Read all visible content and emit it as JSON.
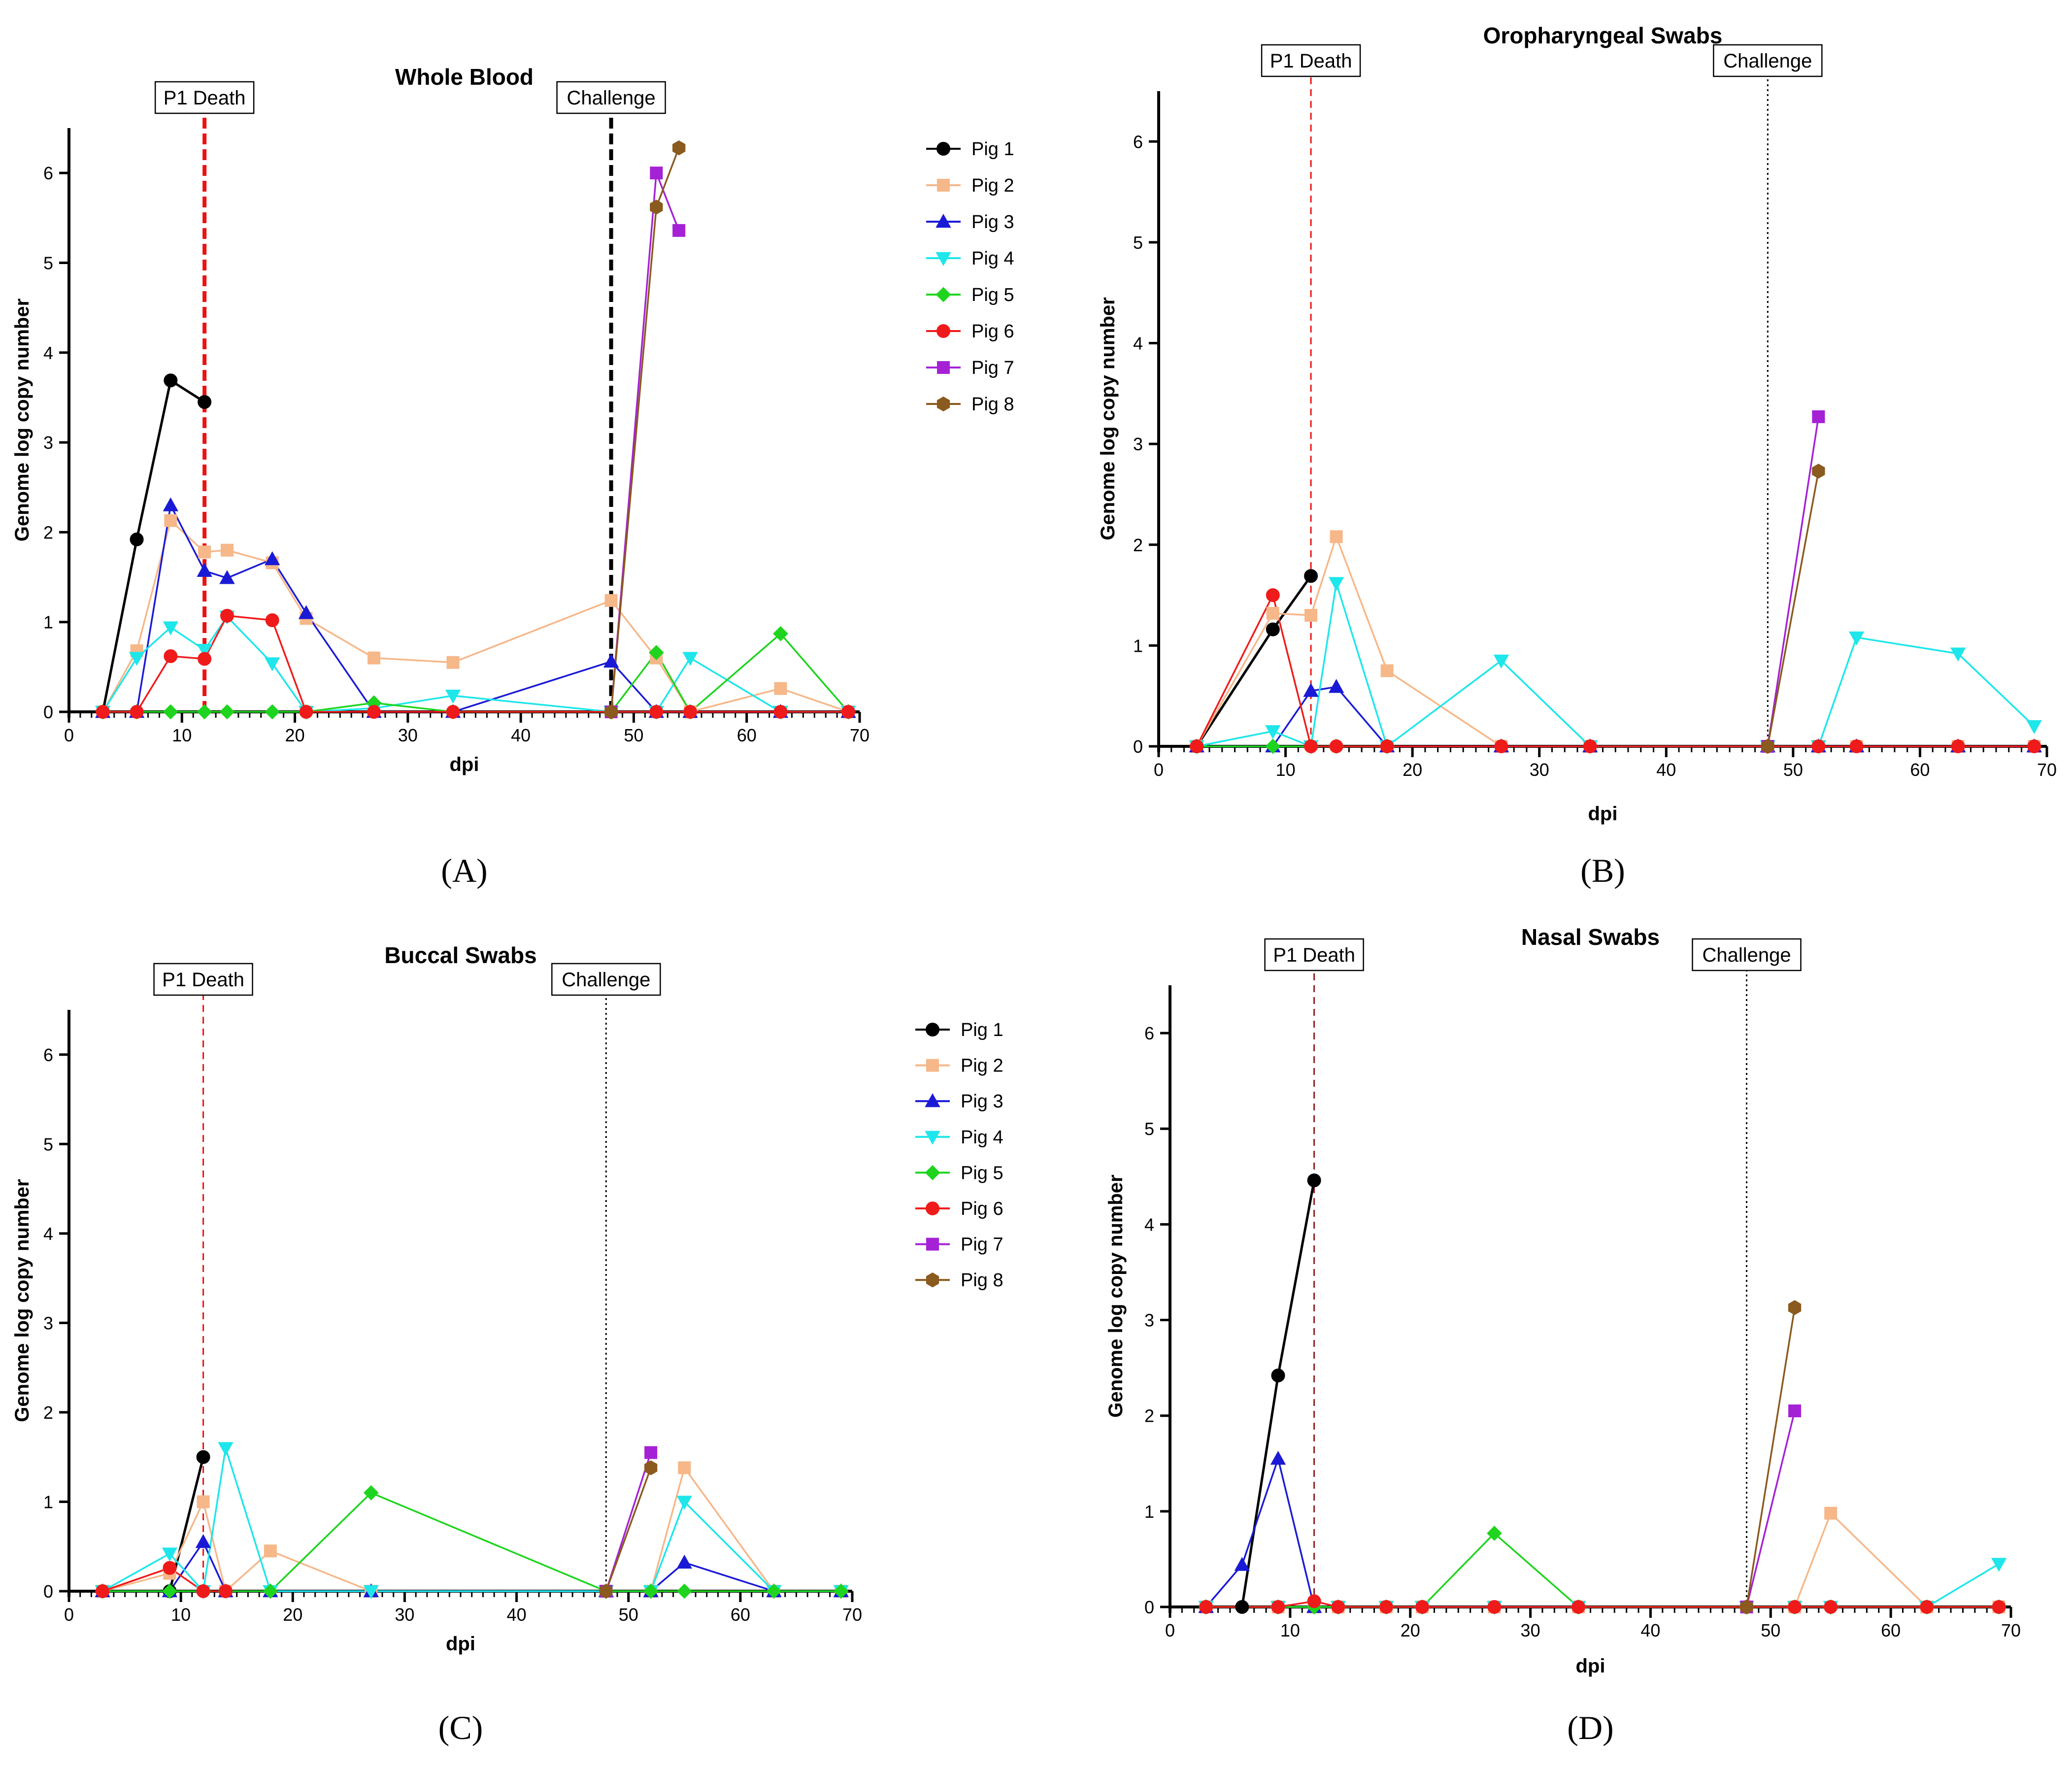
{
  "series_styles": [
    {
      "name": "Pig 1",
      "color": "#000000",
      "marker": "circle"
    },
    {
      "name": "Pig 2",
      "color": "#f6b789",
      "marker": "square"
    },
    {
      "name": "Pig 3",
      "color": "#1a1ad6",
      "marker": "triangle"
    },
    {
      "name": "Pig 4",
      "color": "#1ee6ea",
      "marker": "triangle-down"
    },
    {
      "name": "Pig 5",
      "color": "#1fd41f",
      "marker": "diamond"
    },
    {
      "name": "Pig 6",
      "color": "#ef1b1b",
      "marker": "circle"
    },
    {
      "name": "Pig 7",
      "color": "#a521d6",
      "marker": "square"
    },
    {
      "name": "Pig 8",
      "color": "#8a5a1e",
      "marker": "hexagon"
    }
  ],
  "chart_data": [
    {
      "type": "line",
      "letter": "(A)",
      "title": "Whole Blood",
      "xlabel": "dpi",
      "ylabel": "Genome log copy number",
      "xlim": [
        0,
        70
      ],
      "ylim": [
        0,
        6.5
      ],
      "xticks": [
        0,
        10,
        20,
        30,
        40,
        50,
        60,
        70
      ],
      "yticks": [
        0,
        1,
        2,
        3,
        4,
        5,
        6
      ],
      "grid": false,
      "legend": true,
      "events": [
        {
          "label": "P1 Death",
          "x": 12,
          "color": "#ee1111",
          "style": "thick-dashed"
        },
        {
          "label": "Challenge",
          "x": 48,
          "color": "#000000",
          "style": "thick-dashed"
        }
      ],
      "series": [
        {
          "name": "Pig 1",
          "x": [
            3,
            6,
            9,
            12
          ],
          "y": [
            0,
            1.92,
            3.69,
            3.45
          ]
        },
        {
          "name": "Pig 2",
          "x": [
            3,
            6,
            9,
            12,
            14,
            18,
            21,
            27,
            34,
            48,
            52,
            55,
            63,
            69
          ],
          "y": [
            0,
            0.68,
            2.13,
            1.78,
            1.8,
            1.66,
            1.04,
            0.6,
            0.55,
            1.24,
            0.6,
            0,
            0.26,
            0
          ]
        },
        {
          "name": "Pig 3",
          "x": [
            3,
            6,
            9,
            12,
            14,
            18,
            21,
            27,
            34,
            48,
            52,
            55,
            63,
            69
          ],
          "y": [
            0,
            0,
            2.3,
            1.57,
            1.49,
            1.7,
            1.1,
            0,
            0,
            0.56,
            0,
            0,
            0,
            0
          ]
        },
        {
          "name": "Pig 4",
          "x": [
            3,
            6,
            9,
            12,
            14,
            18,
            21,
            27,
            34,
            48,
            52,
            55,
            63,
            69
          ],
          "y": [
            0,
            0.6,
            0.94,
            0.69,
            1.06,
            0.54,
            0,
            0.04,
            0.18,
            0,
            0,
            0.6,
            0,
            0
          ]
        },
        {
          "name": "Pig 5",
          "x": [
            3,
            6,
            9,
            12,
            14,
            18,
            21,
            27,
            34,
            48,
            52,
            55,
            63,
            69
          ],
          "y": [
            0,
            0,
            0,
            0,
            0,
            0,
            0,
            0.1,
            0,
            0,
            0.66,
            0,
            0.87,
            0
          ]
        },
        {
          "name": "Pig 6",
          "x": [
            3,
            6,
            9,
            12,
            14,
            18,
            21,
            27,
            34,
            48,
            52,
            55,
            63,
            69
          ],
          "y": [
            0,
            0,
            0.62,
            0.59,
            1.07,
            1.02,
            0,
            0,
            0,
            0,
            0,
            0,
            0,
            0
          ]
        },
        {
          "name": "Pig 7",
          "x": [
            48,
            52,
            54
          ],
          "y": [
            0,
            6.0,
            5.36
          ]
        },
        {
          "name": "Pig 8",
          "x": [
            48,
            52,
            54
          ],
          "y": [
            0,
            5.62,
            6.28
          ]
        }
      ]
    },
    {
      "type": "line",
      "letter": "(B)",
      "title": "Oropharyngeal Swabs",
      "xlabel": "dpi",
      "ylabel": "Genome log copy number",
      "xlim": [
        0,
        70
      ],
      "ylim": [
        0,
        6.5
      ],
      "xticks": [
        0,
        10,
        20,
        30,
        40,
        50,
        60,
        70
      ],
      "yticks": [
        0,
        1,
        2,
        3,
        4,
        5,
        6
      ],
      "grid": false,
      "legend": false,
      "events": [
        {
          "label": "P1 Death",
          "x": 12,
          "color": "#ee1111",
          "style": "dashed"
        },
        {
          "label": "Challenge",
          "x": 48,
          "color": "#000000",
          "style": "dotted"
        }
      ],
      "series": [
        {
          "name": "Pig 1",
          "x": [
            3,
            9,
            12
          ],
          "y": [
            0,
            1.16,
            1.69
          ]
        },
        {
          "name": "Pig 2",
          "x": [
            3,
            9,
            12,
            14,
            18,
            27,
            34,
            48,
            52,
            55,
            63,
            69
          ],
          "y": [
            0,
            1.32,
            1.3,
            2.08,
            0.75,
            0,
            0,
            0,
            0,
            0,
            0,
            0
          ]
        },
        {
          "name": "Pig 3",
          "x": [
            3,
            9,
            12,
            14,
            18,
            27,
            34,
            48,
            52,
            55,
            63,
            69
          ],
          "y": [
            0,
            0,
            0.55,
            0.59,
            0,
            0,
            0,
            0,
            0,
            0,
            0,
            0
          ]
        },
        {
          "name": "Pig 4",
          "x": [
            3,
            9,
            12,
            14,
            18,
            27,
            34,
            48,
            52,
            55,
            63,
            69
          ],
          "y": [
            0,
            0.15,
            0,
            1.62,
            0,
            0.85,
            0,
            0,
            0,
            1.08,
            0.92,
            0.2
          ]
        },
        {
          "name": "Pig 5",
          "x": [
            3,
            9,
            12,
            14,
            18
          ],
          "y": [
            0,
            0,
            0,
            0,
            0
          ]
        },
        {
          "name": "Pig 6",
          "x": [
            3,
            9,
            12,
            14,
            18,
            27,
            34,
            48,
            52,
            55,
            63,
            69
          ],
          "y": [
            0,
            1.5,
            0,
            0,
            0,
            0,
            0,
            0,
            0,
            0,
            0,
            0
          ]
        },
        {
          "name": "Pig 7",
          "x": [
            48,
            52
          ],
          "y": [
            0,
            3.27
          ]
        },
        {
          "name": "Pig 8",
          "x": [
            48,
            52
          ],
          "y": [
            0,
            2.73
          ]
        }
      ]
    },
    {
      "type": "line",
      "letter": "(C)",
      "title": "Buccal Swabs",
      "xlabel": "dpi",
      "ylabel": "Genome log copy number",
      "xlim": [
        0,
        70
      ],
      "ylim": [
        0,
        6.5
      ],
      "xticks": [
        0,
        10,
        20,
        30,
        40,
        50,
        60,
        70
      ],
      "yticks": [
        0,
        1,
        2,
        3,
        4,
        5,
        6
      ],
      "grid": false,
      "legend": true,
      "events": [
        {
          "label": "P1 Death",
          "x": 12,
          "color": "#ee1111",
          "style": "dashed"
        },
        {
          "label": "Challenge",
          "x": 48,
          "color": "#000000",
          "style": "dotted"
        }
      ],
      "series": [
        {
          "name": "Pig 1",
          "x": [
            3,
            9,
            12
          ],
          "y": [
            0,
            0,
            1.5
          ]
        },
        {
          "name": "Pig 2",
          "x": [
            3,
            9,
            12,
            14,
            18,
            27,
            48,
            52,
            55,
            63,
            69
          ],
          "y": [
            0,
            0.2,
            1.0,
            0,
            0.45,
            0,
            0,
            0,
            1.38,
            0,
            0
          ]
        },
        {
          "name": "Pig 3",
          "x": [
            3,
            9,
            12,
            14,
            18,
            27,
            48,
            52,
            55,
            63,
            69
          ],
          "y": [
            0,
            0,
            0.55,
            0,
            0,
            0,
            0,
            0,
            0.32,
            0,
            0
          ]
        },
        {
          "name": "Pig 4",
          "x": [
            3,
            9,
            12,
            14,
            18,
            27,
            48,
            52,
            55,
            63,
            69
          ],
          "y": [
            0,
            0.42,
            0,
            1.6,
            0,
            0,
            0,
            0,
            1.0,
            0,
            0
          ]
        },
        {
          "name": "Pig 5",
          "x": [
            3,
            9,
            12,
            14,
            18,
            27,
            48,
            52,
            55,
            63,
            69
          ],
          "y": [
            0,
            0,
            0,
            0,
            0,
            1.1,
            0,
            0,
            0,
            0,
            0
          ]
        },
        {
          "name": "Pig 6",
          "x": [
            3,
            9,
            12,
            14
          ],
          "y": [
            0,
            0.26,
            0,
            0
          ]
        },
        {
          "name": "Pig 7",
          "x": [
            48,
            52
          ],
          "y": [
            0,
            1.55
          ]
        },
        {
          "name": "Pig 8",
          "x": [
            48,
            52
          ],
          "y": [
            0,
            1.38
          ]
        }
      ]
    },
    {
      "type": "line",
      "letter": "(D)",
      "title": "Nasal Swabs",
      "xlabel": "dpi",
      "ylabel": "Genome log copy number",
      "xlim": [
        0,
        70
      ],
      "ylim": [
        0,
        6.5
      ],
      "xticks": [
        0,
        10,
        20,
        30,
        40,
        50,
        60,
        70
      ],
      "yticks": [
        0,
        1,
        2,
        3,
        4,
        5,
        6
      ],
      "grid": false,
      "legend": false,
      "events": [
        {
          "label": "P1 Death",
          "x": 12,
          "color": "#8a1c1c",
          "style": "dashed"
        },
        {
          "label": "Challenge",
          "x": 48,
          "color": "#000000",
          "style": "dotted"
        }
      ],
      "series": [
        {
          "name": "Pig 1",
          "x": [
            3,
            6,
            9,
            12
          ],
          "y": [
            0,
            0,
            2.42,
            4.46
          ]
        },
        {
          "name": "Pig 2",
          "x": [
            3,
            9,
            12,
            14,
            18,
            21,
            27,
            34,
            48,
            52,
            55,
            63,
            69
          ],
          "y": [
            0,
            0,
            0,
            0,
            0,
            0,
            0,
            0,
            0,
            0,
            0.98,
            0,
            0
          ]
        },
        {
          "name": "Pig 3",
          "x": [
            3,
            6,
            9,
            12
          ],
          "y": [
            0,
            0.44,
            1.55,
            0
          ]
        },
        {
          "name": "Pig 4",
          "x": [
            3,
            9,
            12,
            14,
            18,
            21,
            27,
            34,
            48,
            52,
            55,
            63,
            69
          ],
          "y": [
            0,
            0,
            0,
            0,
            0,
            0,
            0,
            0,
            0,
            0,
            0,
            0,
            0.45
          ]
        },
        {
          "name": "Pig 5",
          "x": [
            3,
            9,
            12,
            14,
            18,
            21,
            27,
            34,
            48,
            52,
            55,
            63,
            69
          ],
          "y": [
            0,
            0,
            0,
            0,
            0,
            0,
            0.77,
            0,
            0,
            0,
            0,
            0,
            0
          ]
        },
        {
          "name": "Pig 6",
          "x": [
            3,
            9,
            12,
            14,
            18,
            21,
            27,
            34,
            48,
            52,
            55,
            63,
            69
          ],
          "y": [
            0,
            0,
            0.06,
            0,
            0,
            0,
            0,
            0,
            0,
            0,
            0,
            0,
            0
          ]
        },
        {
          "name": "Pig 7",
          "x": [
            48,
            52
          ],
          "y": [
            0,
            2.05
          ]
        },
        {
          "name": "Pig 8",
          "x": [
            48,
            52
          ],
          "y": [
            0,
            3.13
          ]
        }
      ]
    }
  ]
}
